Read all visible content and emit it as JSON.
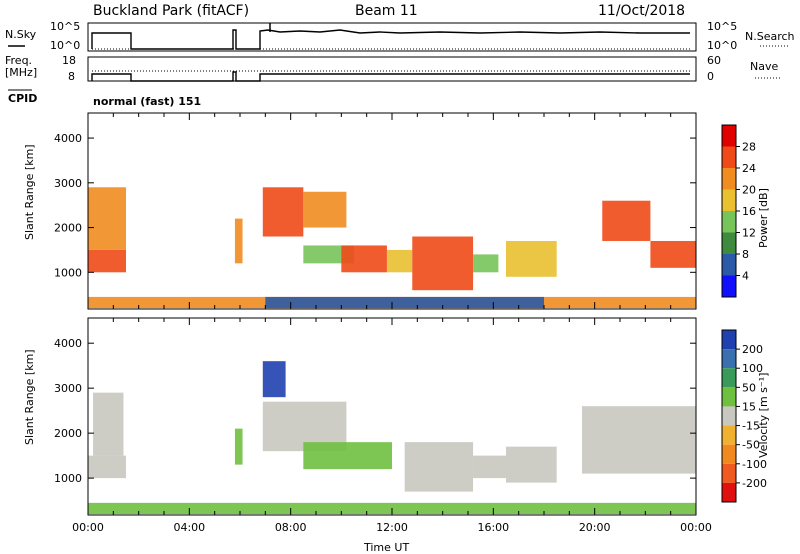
{
  "header": {
    "station": "Buckland Park (fitACF)",
    "beam": "Beam 11",
    "date": "11/Oct/2018"
  },
  "panels": {
    "nsky_label": "N.Sky",
    "nsearch_label": "N.Search",
    "nsky_top_tick": "10^5",
    "nsky_bottom_tick": "10^0",
    "freq_label_1": "Freq.",
    "freq_label_2": "[MHz]",
    "freq_top_tick": "18",
    "freq_bottom_tick": "8",
    "nave_label": "Nave",
    "nave_top_tick": "60",
    "nave_bottom_tick": "0",
    "cpid_label": "CPID",
    "cpid_value": "normal (fast) 151"
  },
  "chart_data": [
    {
      "type": "heatmap",
      "name": "power",
      "xlabel": "",
      "ylabel": "Slant Range [km]",
      "xlim": [
        0,
        24
      ],
      "ylim": [
        180,
        4560
      ],
      "y_ticks": [
        "1000",
        "2000",
        "3000",
        "4000"
      ],
      "colorbar_label": "Power [dB]",
      "colorbar_ticks": [
        "4",
        "8",
        "12",
        "16",
        "20",
        "24",
        "28"
      ],
      "colors": [
        "#1010ff",
        "#2a5aa8",
        "#3e8a3e",
        "#77c45a",
        "#e8c030",
        "#f08c20",
        "#f04a18",
        "#e00000"
      ],
      "patches": [
        {
          "t0": 0.0,
          "t1": 1.5,
          "r0": 1000,
          "r1": 1500,
          "color": "#f04a18"
        },
        {
          "t0": 0.0,
          "t1": 1.5,
          "r0": 1500,
          "r1": 2900,
          "color": "#f08c20"
        },
        {
          "t0": 5.8,
          "t1": 6.1,
          "r0": 1200,
          "r1": 2200,
          "color": "#f08c20"
        },
        {
          "t0": 6.9,
          "t1": 8.5,
          "r0": 1800,
          "r1": 2900,
          "color": "#f04a18"
        },
        {
          "t0": 8.5,
          "t1": 10.2,
          "r0": 2000,
          "r1": 2800,
          "color": "#f08c20"
        },
        {
          "t0": 8.5,
          "t1": 10.5,
          "r0": 1200,
          "r1": 1600,
          "color": "#77c45a"
        },
        {
          "t0": 10.0,
          "t1": 11.8,
          "r0": 1000,
          "r1": 1600,
          "color": "#f04a18"
        },
        {
          "t0": 11.8,
          "t1": 12.8,
          "r0": 1000,
          "r1": 1500,
          "color": "#e8c030"
        },
        {
          "t0": 12.8,
          "t1": 15.2,
          "r0": 600,
          "r1": 1800,
          "color": "#f04a18"
        },
        {
          "t0": 15.2,
          "t1": 16.2,
          "r0": 1000,
          "r1": 1400,
          "color": "#77c45a"
        },
        {
          "t0": 16.5,
          "t1": 18.5,
          "r0": 900,
          "r1": 1700,
          "color": "#e8c030"
        },
        {
          "t0": 20.3,
          "t1": 22.2,
          "r0": 1700,
          "r1": 2600,
          "color": "#f04a18"
        },
        {
          "t0": 22.2,
          "t1": 24.0,
          "r0": 1100,
          "r1": 1700,
          "color": "#f04a18"
        },
        {
          "t0": 0.0,
          "t1": 24.0,
          "r0": 200,
          "r1": 450,
          "color": "#f08c20"
        },
        {
          "t0": 7.0,
          "t1": 18.0,
          "r0": 200,
          "r1": 450,
          "color": "#2a5aa8"
        }
      ]
    },
    {
      "type": "heatmap",
      "name": "velocity",
      "xlabel": "Time UT",
      "ylabel": "Slant Range [km]",
      "xlim": [
        0,
        24
      ],
      "ylim": [
        180,
        4560
      ],
      "x_ticks": [
        "00:00",
        "04:00",
        "08:00",
        "12:00",
        "16:00",
        "20:00",
        "00:00"
      ],
      "y_ticks": [
        "1000",
        "2000",
        "3000",
        "4000"
      ],
      "colorbar_label": "Velocity [m s⁻¹]",
      "colorbar_ticks": [
        "200",
        "100",
        "50",
        "15",
        "-15",
        "-50",
        "-100",
        "-200"
      ],
      "colors": [
        "#2040b0",
        "#3a70b0",
        "#3a9a5a",
        "#70c040",
        "#c8c8c0",
        "#f0b030",
        "#f08a20",
        "#f05a20",
        "#e01010"
      ],
      "patches": [
        {
          "t0": 0.0,
          "t1": 1.5,
          "r0": 1000,
          "r1": 1500,
          "color": "#c8c8c0"
        },
        {
          "t0": 0.2,
          "t1": 1.4,
          "r0": 1500,
          "r1": 2900,
          "color": "#c8c8c0"
        },
        {
          "t0": 5.8,
          "t1": 6.1,
          "r0": 1300,
          "r1": 2100,
          "color": "#70c040"
        },
        {
          "t0": 6.9,
          "t1": 7.8,
          "r0": 2800,
          "r1": 3600,
          "color": "#2040b0"
        },
        {
          "t0": 6.9,
          "t1": 10.2,
          "r0": 1600,
          "r1": 2700,
          "color": "#c8c8c0"
        },
        {
          "t0": 8.5,
          "t1": 12.0,
          "r0": 1200,
          "r1": 1800,
          "color": "#70c040"
        },
        {
          "t0": 12.5,
          "t1": 15.2,
          "r0": 700,
          "r1": 1800,
          "color": "#c8c8c0"
        },
        {
          "t0": 15.2,
          "t1": 16.5,
          "r0": 1000,
          "r1": 1500,
          "color": "#c8c8c0"
        },
        {
          "t0": 16.5,
          "t1": 18.5,
          "r0": 900,
          "r1": 1700,
          "color": "#c8c8c0"
        },
        {
          "t0": 19.5,
          "t1": 24.0,
          "r0": 1100,
          "r1": 2600,
          "color": "#c8c8c0"
        },
        {
          "t0": 0.0,
          "t1": 24.0,
          "r0": 200,
          "r1": 450,
          "color": "#70c040"
        }
      ]
    }
  ]
}
